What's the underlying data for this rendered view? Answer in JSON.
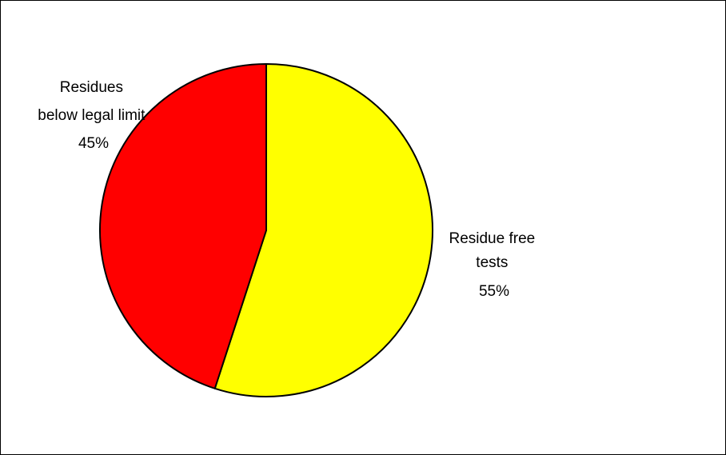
{
  "chart_data": {
    "type": "pie",
    "title": "",
    "slices": [
      {
        "label_lines": [
          "Residue free",
          "tests"
        ],
        "percent_text": "55%",
        "value": 55,
        "color": "#ffff00"
      },
      {
        "label_lines": [
          "Residues",
          "below legal limit"
        ],
        "percent_text": "45%",
        "value": 45,
        "color": "#ff0000"
      }
    ],
    "start_angle_deg": 0,
    "direction": "clockwise",
    "outline_color": "#000000",
    "legend": "none"
  }
}
